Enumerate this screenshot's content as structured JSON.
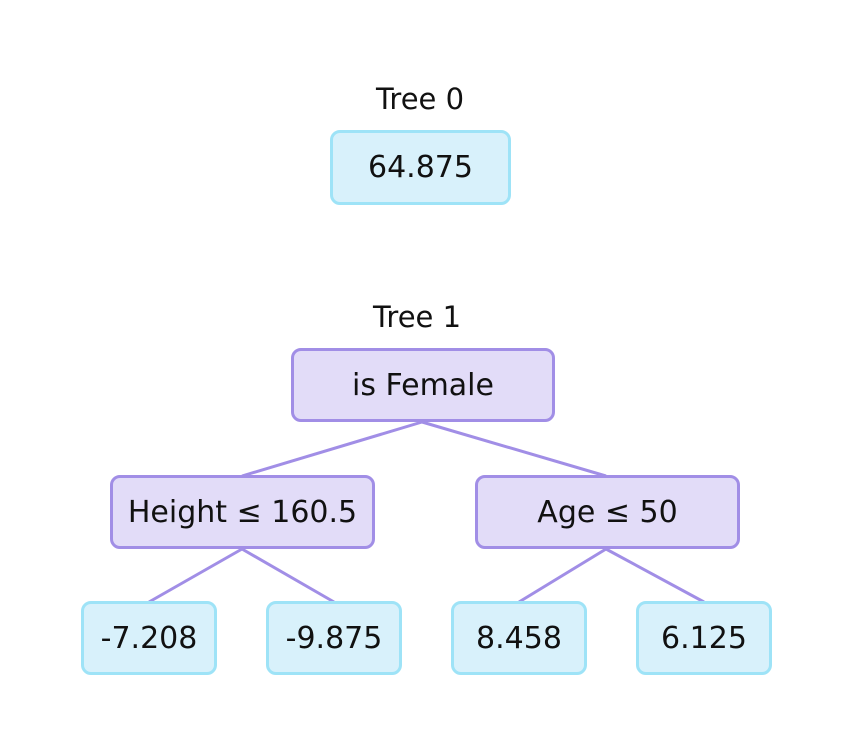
{
  "colors": {
    "leaf_fill": "#d8f1fb",
    "leaf_border": "#9ee3f7",
    "split_fill": "#e2dcf8",
    "split_border": "#a18ee6",
    "edge": "#a18ee6"
  },
  "trees": [
    {
      "title": "Tree 0",
      "root": {
        "value": "64.875"
      }
    },
    {
      "title": "Tree 1",
      "root": {
        "label": "is Female"
      },
      "left": {
        "label": "Height ≤ 160.5"
      },
      "right": {
        "label": "Age ≤ 50"
      },
      "leaves": [
        "-7.208",
        "-9.875",
        "8.458",
        "6.125"
      ]
    }
  ]
}
